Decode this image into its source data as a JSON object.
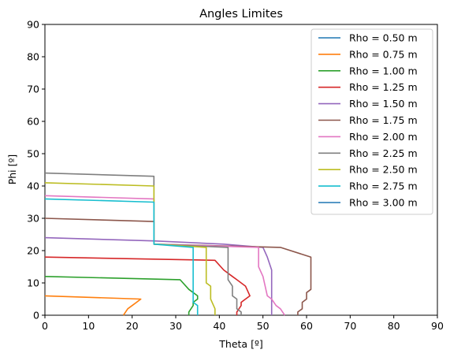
{
  "chart_data": {
    "type": "line",
    "title": "Angles Limites",
    "xlabel": "Theta [º]",
    "ylabel": "Phi [º]",
    "xlim": [
      0,
      90
    ],
    "ylim": [
      0,
      90
    ],
    "xticks": [
      0,
      10,
      20,
      30,
      40,
      50,
      60,
      70,
      80,
      90
    ],
    "yticks": [
      0,
      10,
      20,
      30,
      40,
      50,
      60,
      70,
      80,
      90
    ],
    "grid": false,
    "legend_position": "top-right",
    "series": [
      {
        "name": "Rho = 0.50 m",
        "color": "#1f77b4",
        "x": [],
        "y": []
      },
      {
        "name": "Rho = 0.75 m",
        "color": "#ff7f0e",
        "x": [
          0,
          22,
          21,
          20,
          19,
          18
        ],
        "y": [
          6,
          5,
          4,
          3,
          2,
          0
        ]
      },
      {
        "name": "Rho = 1.00 m",
        "color": "#2ca02c",
        "x": [
          0,
          31,
          33,
          35,
          35,
          34,
          34,
          33,
          33
        ],
        "y": [
          12,
          11,
          8,
          6,
          5,
          4,
          3,
          1,
          0
        ]
      },
      {
        "name": "Rho = 1.25 m",
        "color": "#d62728",
        "x": [
          0,
          39,
          41,
          43,
          44,
          45,
          46,
          47,
          46,
          45,
          45,
          44,
          44
        ],
        "y": [
          18,
          17,
          14,
          12,
          11,
          10,
          9,
          6,
          5,
          4,
          3,
          1,
          0
        ]
      },
      {
        "name": "Rho = 1.50 m",
        "color": "#9467bd",
        "x": [
          0,
          25,
          41,
          50,
          51,
          52,
          52,
          52
        ],
        "y": [
          24,
          23,
          22,
          21,
          18,
          14,
          3,
          0
        ]
      },
      {
        "name": "Rho = 1.75 m",
        "color": "#8c564b",
        "x": [
          0,
          25,
          25,
          54,
          61,
          61,
          60,
          60,
          59,
          59,
          58,
          58
        ],
        "y": [
          30,
          29,
          22,
          21,
          18,
          8,
          7,
          5,
          4,
          2,
          1,
          0
        ]
      },
      {
        "name": "Rho = 2.00 m",
        "color": "#e377c2",
        "x": [
          0,
          25,
          25,
          49,
          49,
          50,
          51,
          52,
          53,
          54,
          55
        ],
        "y": [
          37,
          36,
          22,
          21,
          15,
          12,
          6,
          5,
          3,
          2,
          0
        ]
      },
      {
        "name": "Rho = 2.25 m",
        "color": "#7f7f7f",
        "x": [
          0,
          25,
          25,
          42,
          42,
          43,
          43,
          44,
          44,
          45,
          45
        ],
        "y": [
          44,
          43,
          22,
          21,
          11,
          9,
          6,
          5,
          2,
          1,
          0
        ]
      },
      {
        "name": "Rho = 2.50 m",
        "color": "#bcbd22",
        "x": [
          0,
          25,
          25,
          37,
          37,
          38,
          38,
          39,
          39
        ],
        "y": [
          41,
          40,
          22,
          21,
          10,
          9,
          5,
          2,
          0
        ]
      },
      {
        "name": "Rho = 2.75 m",
        "color": "#17becf",
        "x": [
          0,
          25,
          25,
          34,
          34,
          35,
          35
        ],
        "y": [
          36,
          35,
          22,
          21,
          4,
          3,
          0
        ]
      },
      {
        "name": "Rho = 3.00 m",
        "color": "#1f77b4",
        "x": [],
        "y": []
      }
    ]
  }
}
